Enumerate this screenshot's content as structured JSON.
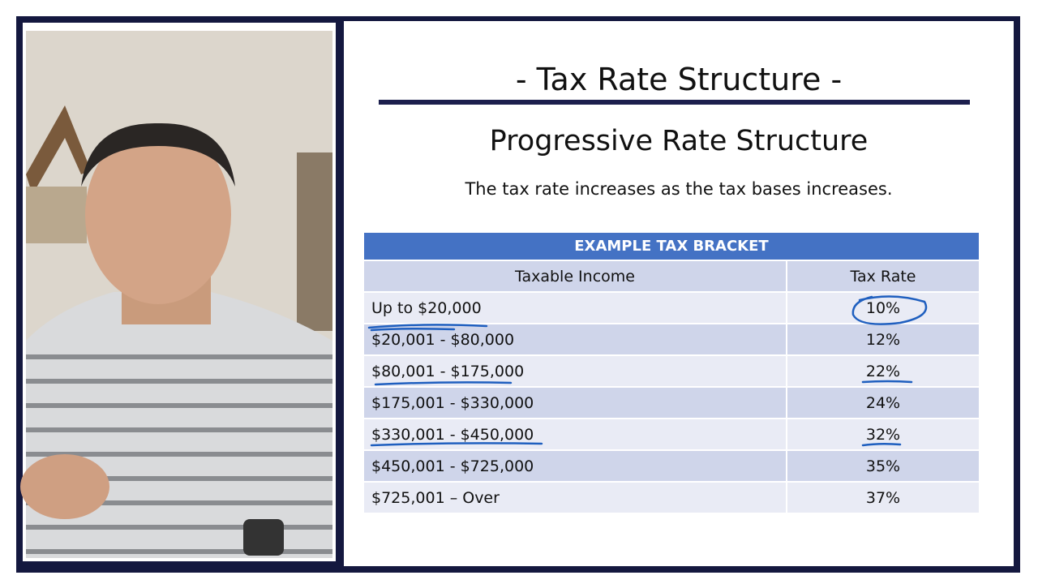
{
  "slide": {
    "title": "- Tax Rate Structure -",
    "subtitle": "Progressive Rate Structure",
    "description": "The tax rate increases as the tax bases increases."
  },
  "table": {
    "caption": "EXAMPLE TAX BRACKET",
    "columns": [
      "Taxable Income",
      "Tax Rate"
    ],
    "rows": [
      [
        "Up to $20,000",
        "10%"
      ],
      [
        "$20,001 - $80,000",
        "12%"
      ],
      [
        "$80,001 - $175,000",
        "22%"
      ],
      [
        "$175,001 - $330,000",
        "24%"
      ],
      [
        "$330,001 - $450,000",
        "32%"
      ],
      [
        "$450,001 - $725,000",
        "35%"
      ],
      [
        "$725,001 – Over",
        "37%"
      ]
    ]
  }
}
